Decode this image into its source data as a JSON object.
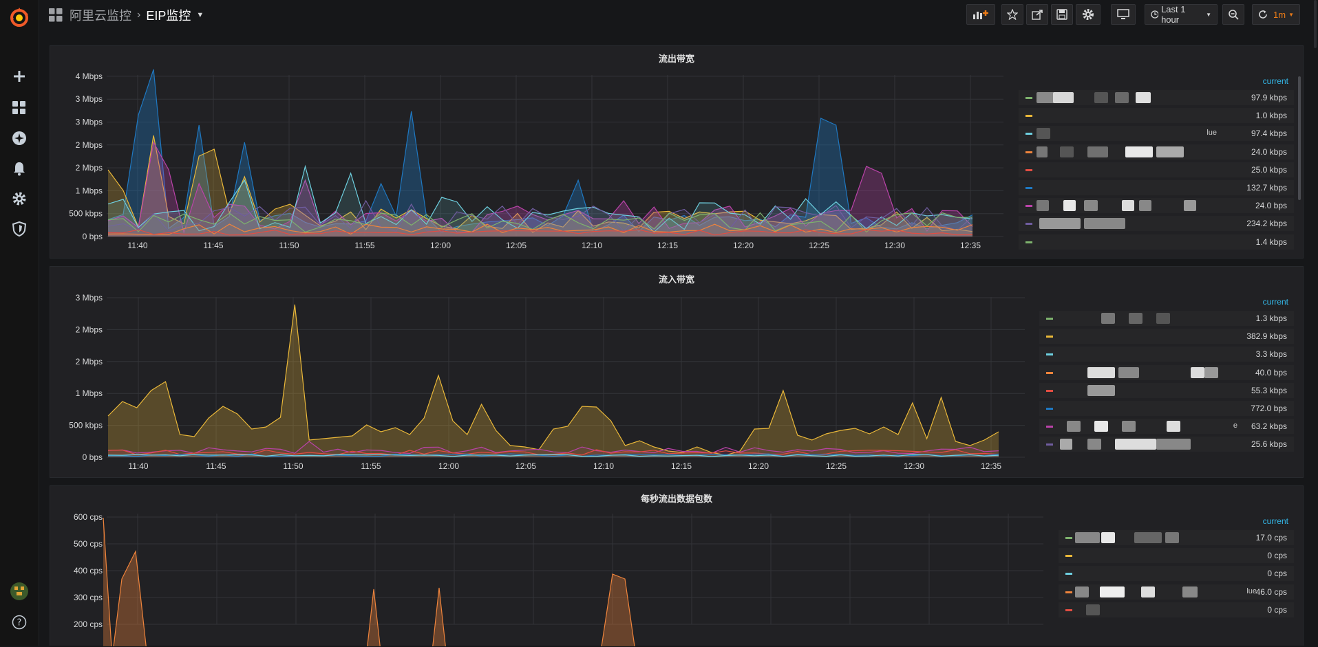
{
  "breadcrumb": {
    "folder": "阿里云监控",
    "dashboard": "EIP监控"
  },
  "toolbar": {
    "time_range": "Last 1 hour",
    "refresh_interval": "1m"
  },
  "icons": [
    "grafana-logo",
    "plus-icon",
    "dashboards-icon",
    "explore-icon",
    "alerting-icon",
    "configuration-icon",
    "shield-icon",
    "avatar",
    "help-icon",
    "add-panel-icon",
    "star-icon",
    "share-icon",
    "save-icon",
    "settings-icon",
    "tv-icon",
    "clock-icon",
    "zoom-out-icon",
    "refresh-icon"
  ],
  "colors": {
    "green": "#7eb26d",
    "yellow": "#eab839",
    "cyan": "#6ed0e0",
    "orange": "#ef843c",
    "red": "#e24d42",
    "blue": "#1f78c1",
    "magenta": "#ba43a9",
    "purple": "#705da0",
    "accent": "#33b5e5",
    "refresh": "#eb7b18"
  },
  "panels": [
    {
      "title": "流出带宽",
      "x_ticks": [
        "11:40",
        "11:45",
        "11:50",
        "11:55",
        "12:00",
        "12:05",
        "12:10",
        "12:15",
        "12:20",
        "12:25",
        "12:30",
        "12:35"
      ],
      "y_ticks": [
        "0 bps",
        "500 kbps",
        "1 Mbps",
        "2 Mbps",
        "2 Mbps",
        "3 Mbps",
        "3 Mbps",
        "4 Mbps"
      ],
      "legend_header": "current",
      "legend": [
        {
          "label": "",
          "value": "97.9 kbps"
        },
        {
          "label": "",
          "value": "1.0 kbps"
        },
        {
          "label": "lue",
          "value": "97.4 kbps"
        },
        {
          "label": "",
          "value": "24.0 kbps"
        },
        {
          "label": "",
          "value": "25.0 kbps"
        },
        {
          "label": "",
          "value": "132.7 kbps"
        },
        {
          "label": "",
          "value": "24.0 bps"
        },
        {
          "label": "",
          "value": "234.2 kbps"
        },
        {
          "label": "",
          "value": "1.4 kbps"
        }
      ]
    },
    {
      "title": "流入带宽",
      "x_ticks": [
        "11:40",
        "11:45",
        "11:50",
        "11:55",
        "12:00",
        "12:05",
        "12:10",
        "12:15",
        "12:20",
        "12:25",
        "12:30",
        "12:35"
      ],
      "y_ticks": [
        "0 bps",
        "500 kbps",
        "1 Mbps",
        "2 Mbps",
        "2 Mbps",
        "3 Mbps"
      ],
      "legend_header": "current",
      "legend": [
        {
          "label": "",
          "value": "1.3 kbps"
        },
        {
          "label": "",
          "value": "382.9 kbps"
        },
        {
          "label": "",
          "value": "3.3 kbps"
        },
        {
          "label": "",
          "value": "40.0 bps"
        },
        {
          "label": "",
          "value": "55.3 kbps"
        },
        {
          "label": "",
          "value": "772.0 bps"
        },
        {
          "label": "e",
          "value": "63.2 kbps"
        },
        {
          "label": "",
          "value": "25.6 kbps"
        }
      ]
    },
    {
      "title": "每秒流出数据包数",
      "y_ticks": [
        "200 cps",
        "300 cps",
        "400 cps",
        "500 cps",
        "600 cps"
      ],
      "legend_header": "current",
      "legend": [
        {
          "label": "",
          "value": "17.0 cps"
        },
        {
          "label": "",
          "value": "0 cps"
        },
        {
          "label": "",
          "value": "0 cps"
        },
        {
          "label": "lue",
          "value": "46.0 cps"
        },
        {
          "label": "",
          "value": "0 cps"
        }
      ]
    }
  ]
}
